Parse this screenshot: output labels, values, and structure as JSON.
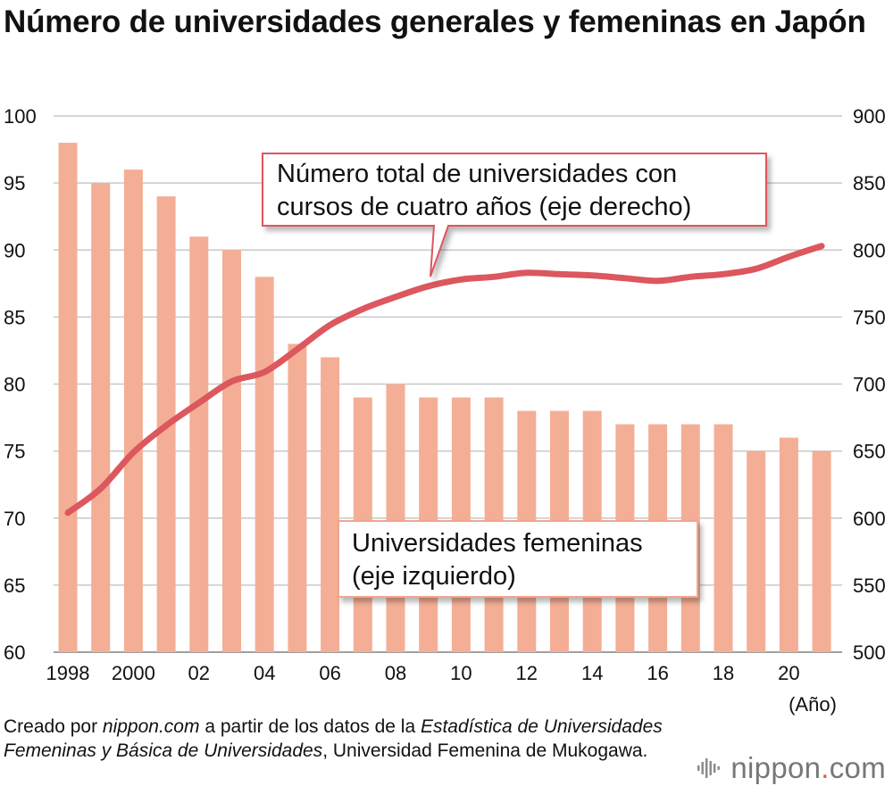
{
  "title": "Número de universidades generales y femeninas en Japón",
  "chart_data": {
    "type": "bar+line",
    "title": "Número de universidades generales y femeninas en Japón",
    "x": [
      1998,
      1999,
      2000,
      2001,
      2002,
      2003,
      2004,
      2005,
      2006,
      2007,
      2008,
      2009,
      2010,
      2011,
      2012,
      2013,
      2014,
      2015,
      2016,
      2017,
      2018,
      2019,
      2020,
      2021
    ],
    "x_tick_labels": {
      "1998": "1998",
      "2000": "2000",
      "2002": "02",
      "2004": "04",
      "2006": "06",
      "2008": "08",
      "2010": "10",
      "2012": "12",
      "2014": "14",
      "2016": "16",
      "2018": "18",
      "2020": "20"
    },
    "x_unit": "(Año)",
    "left_axis": {
      "min": 60,
      "max": 100,
      "ticks": [
        60,
        65,
        70,
        75,
        80,
        85,
        90,
        95,
        100
      ]
    },
    "right_axis": {
      "min": 500,
      "max": 900,
      "ticks": [
        500,
        550,
        600,
        650,
        700,
        750,
        800,
        850,
        900
      ]
    },
    "series": [
      {
        "name": "Universidades femeninas (eje izquierdo)",
        "type": "bar",
        "axis": "left",
        "color": "#f4ae96",
        "values": [
          98,
          95,
          96,
          94,
          91,
          90,
          88,
          83,
          82,
          79,
          80,
          79,
          79,
          79,
          78,
          78,
          78,
          77,
          77,
          77,
          77,
          75,
          76,
          75
        ]
      },
      {
        "name": "Número total de universidades con cursos de cuatro años (eje derecho)",
        "type": "line",
        "axis": "right",
        "color": "#dc575e",
        "values": [
          604,
          622,
          649,
          669,
          686,
          702,
          709,
          726,
          744,
          756,
          765,
          773,
          778,
          780,
          783,
          782,
          781,
          779,
          777,
          780,
          782,
          786,
          795,
          803
        ]
      }
    ],
    "callouts": {
      "line": [
        "Número total de universidades con",
        "cursos de cuatro años (eje derecho)"
      ],
      "bar": [
        "Universidades femeninas",
        "(eje izquierdo)"
      ]
    },
    "grid": "horizontal"
  },
  "source": {
    "t1": "Creado por ",
    "t2": "nippon.com",
    "t3": " a partir de los datos de la ",
    "t4": "Estadística de Universidades Femeninas y Básica de Universidades",
    "t5": ", Universidad Femenina de Mukogawa."
  },
  "brand": {
    "name": "nippon",
    "dot": ".",
    "tld": "com",
    "colors": {
      "text": "#777777",
      "dot": "#e05a46"
    }
  }
}
